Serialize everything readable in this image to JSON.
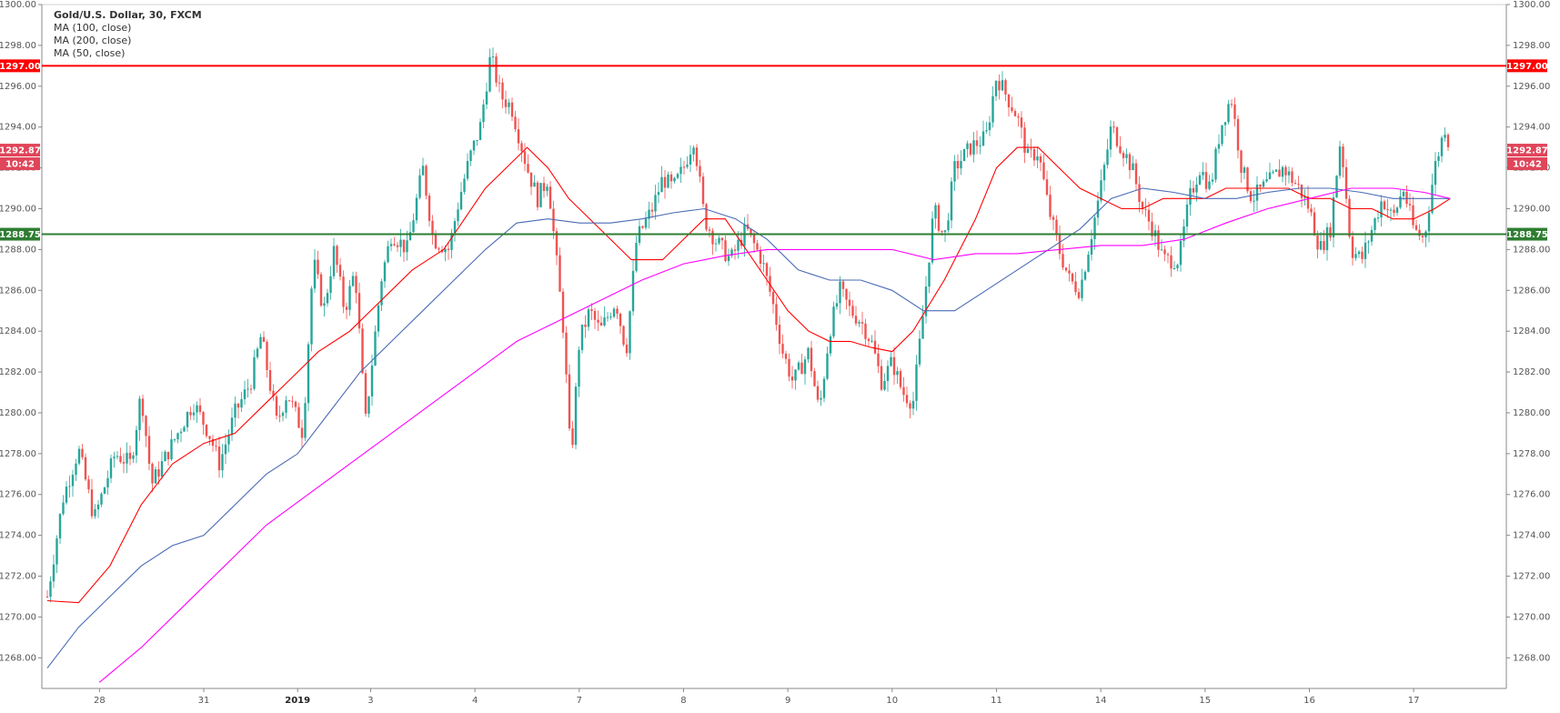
{
  "legend": {
    "title": "Gold/U.S. Dollar, 30, FXCM",
    "lines": [
      "MA (100, close)",
      "MA (200, close)",
      "MA (50, close)"
    ]
  },
  "colors": {
    "up": "#26a69a",
    "down": "#ef5350",
    "ma50": "#ff0000",
    "ma100": "#4a6bb5",
    "ma200": "#ff00ff",
    "resistance": "#ff0000",
    "support": "#2e7d32",
    "price_badge": "#e0455a"
  },
  "badges": {
    "resistance": "1297.00",
    "support": "1288.75",
    "last_price": "1292.87",
    "countdown": "10:42"
  },
  "chart_data": {
    "type": "candlestick",
    "title": "Gold/U.S. Dollar, 30, FXCM",
    "ylim": [
      1266.5,
      1300
    ],
    "yticks": [
      1268,
      1270,
      1272,
      1274,
      1276,
      1278,
      1280,
      1282,
      1284,
      1286,
      1288,
      1290,
      1292,
      1294,
      1296,
      1298,
      1300
    ],
    "ytick_labels": [
      "1268.00",
      "1270.00",
      "1272.00",
      "1274.00",
      "1276.00",
      "1278.00",
      "1280.00",
      "1282.00",
      "1284.00",
      "1286.00",
      "1288.00",
      "1290.00",
      "1292.00",
      "1294.00",
      "1296.00",
      "1298.00",
      "1300.00"
    ],
    "xlim": [
      0,
      13.5
    ],
    "xticks": [
      {
        "label": "28",
        "x": 0.5
      },
      {
        "label": "31",
        "x": 1.5
      },
      {
        "label": "2019",
        "x": 2.4,
        "bold": true
      },
      {
        "label": "3",
        "x": 3.1
      },
      {
        "label": "4",
        "x": 4.1
      },
      {
        "label": "7",
        "x": 5.1
      },
      {
        "label": "8",
        "x": 6.1
      },
      {
        "label": "9",
        "x": 7.1
      },
      {
        "label": "10",
        "x": 8.1
      },
      {
        "label": "11",
        "x": 9.1
      },
      {
        "label": "14",
        "x": 10.1
      },
      {
        "label": "15",
        "x": 11.1
      },
      {
        "label": "16",
        "x": 12.1
      },
      {
        "label": "17",
        "x": 13.1
      }
    ],
    "price_path": [
      [
        0.0,
        1271.0
      ],
      [
        0.15,
        1275.8
      ],
      [
        0.3,
        1278.2
      ],
      [
        0.45,
        1274.8
      ],
      [
        0.65,
        1278.0
      ],
      [
        0.8,
        1277.5
      ],
      [
        0.9,
        1281.0
      ],
      [
        1.0,
        1276.5
      ],
      [
        1.15,
        1278.0
      ],
      [
        1.3,
        1279.5
      ],
      [
        1.4,
        1280.5
      ],
      [
        1.55,
        1279.0
      ],
      [
        1.65,
        1277.5
      ],
      [
        1.8,
        1280.0
      ],
      [
        1.95,
        1281.5
      ],
      [
        2.05,
        1283.8
      ],
      [
        2.2,
        1279.5
      ],
      [
        2.3,
        1281.0
      ],
      [
        2.45,
        1279.0
      ],
      [
        2.55,
        1287.5
      ],
      [
        2.65,
        1285.0
      ],
      [
        2.75,
        1288.0
      ],
      [
        2.85,
        1285.0
      ],
      [
        2.95,
        1287.0
      ],
      [
        3.05,
        1279.5
      ],
      [
        3.2,
        1286.5
      ],
      [
        3.3,
        1288.8
      ],
      [
        3.45,
        1288.0
      ],
      [
        3.6,
        1292.0
      ],
      [
        3.7,
        1288.5
      ],
      [
        3.85,
        1288.0
      ],
      [
        3.95,
        1290.5
      ],
      [
        4.05,
        1292.5
      ],
      [
        4.15,
        1294.0
      ],
      [
        4.25,
        1297.5
      ],
      [
        4.35,
        1295.5
      ],
      [
        4.45,
        1295.0
      ],
      [
        4.6,
        1292.0
      ],
      [
        4.7,
        1290.5
      ],
      [
        4.8,
        1291.5
      ],
      [
        4.95,
        1284.0
      ],
      [
        5.02,
        1277.5
      ],
      [
        5.1,
        1283.5
      ],
      [
        5.2,
        1285.0
      ],
      [
        5.3,
        1284.0
      ],
      [
        5.45,
        1285.5
      ],
      [
        5.55,
        1283.0
      ],
      [
        5.65,
        1288.5
      ],
      [
        5.8,
        1290.0
      ],
      [
        5.9,
        1291.5
      ],
      [
        6.0,
        1291.0
      ],
      [
        6.1,
        1292.0
      ],
      [
        6.2,
        1293.5
      ],
      [
        6.3,
        1289.5
      ],
      [
        6.4,
        1288.5
      ],
      [
        6.55,
        1287.5
      ],
      [
        6.7,
        1289.0
      ],
      [
        6.85,
        1287.5
      ],
      [
        6.95,
        1285.5
      ],
      [
        7.05,
        1283.0
      ],
      [
        7.15,
        1281.5
      ],
      [
        7.3,
        1283.0
      ],
      [
        7.4,
        1280.0
      ],
      [
        7.5,
        1284.0
      ],
      [
        7.6,
        1286.0
      ],
      [
        7.7,
        1285.0
      ],
      [
        7.8,
        1284.5
      ],
      [
        7.9,
        1283.5
      ],
      [
        8.0,
        1281.5
      ],
      [
        8.1,
        1282.5
      ],
      [
        8.2,
        1281.0
      ],
      [
        8.3,
        1280.5
      ],
      [
        8.4,
        1285.0
      ],
      [
        8.5,
        1290.0
      ],
      [
        8.6,
        1288.5
      ],
      [
        8.7,
        1292.0
      ],
      [
        8.85,
        1293.0
      ],
      [
        9.0,
        1293.5
      ],
      [
        9.1,
        1296.5
      ],
      [
        9.2,
        1295.5
      ],
      [
        9.3,
        1294.5
      ],
      [
        9.4,
        1292.5
      ],
      [
        9.5,
        1292.8
      ],
      [
        9.6,
        1290.0
      ],
      [
        9.7,
        1288.0
      ],
      [
        9.8,
        1286.5
      ],
      [
        9.9,
        1286.0
      ],
      [
        10.0,
        1288.5
      ],
      [
        10.1,
        1291.0
      ],
      [
        10.2,
        1294.0
      ],
      [
        10.3,
        1293.0
      ],
      [
        10.4,
        1292.0
      ],
      [
        10.5,
        1290.0
      ],
      [
        10.6,
        1289.0
      ],
      [
        10.7,
        1287.5
      ],
      [
        10.85,
        1287.5
      ],
      [
        10.95,
        1290.5
      ],
      [
        11.05,
        1292.0
      ],
      [
        11.15,
        1291.0
      ],
      [
        11.25,
        1294.0
      ],
      [
        11.35,
        1295.5
      ],
      [
        11.45,
        1292.0
      ],
      [
        11.55,
        1290.5
      ],
      [
        11.65,
        1291.0
      ],
      [
        11.75,
        1291.5
      ],
      [
        11.85,
        1292.0
      ],
      [
        12.0,
        1291.0
      ],
      [
        12.1,
        1290.0
      ],
      [
        12.2,
        1288.0
      ],
      [
        12.3,
        1289.0
      ],
      [
        12.4,
        1293.5
      ],
      [
        12.5,
        1288.0
      ],
      [
        12.6,
        1287.5
      ],
      [
        12.7,
        1289.0
      ],
      [
        12.8,
        1290.5
      ],
      [
        12.9,
        1289.5
      ],
      [
        13.0,
        1291.0
      ],
      [
        13.1,
        1289.0
      ],
      [
        13.2,
        1288.5
      ],
      [
        13.3,
        1292.0
      ],
      [
        13.4,
        1294.0
      ],
      [
        13.45,
        1292.87
      ]
    ],
    "series": [
      {
        "name": "MA (50, close)",
        "color": "#ff0000",
        "points": [
          [
            0,
            1270.8
          ],
          [
            0.3,
            1270.7
          ],
          [
            0.6,
            1272.5
          ],
          [
            0.9,
            1275.5
          ],
          [
            1.2,
            1277.5
          ],
          [
            1.5,
            1278.5
          ],
          [
            1.8,
            1279.0
          ],
          [
            2.1,
            1280.5
          ],
          [
            2.4,
            1282.0
          ],
          [
            2.6,
            1283.0
          ],
          [
            2.9,
            1284.0
          ],
          [
            3.2,
            1285.5
          ],
          [
            3.5,
            1287.0
          ],
          [
            3.8,
            1288.0
          ],
          [
            4.0,
            1289.5
          ],
          [
            4.2,
            1291.0
          ],
          [
            4.4,
            1292.0
          ],
          [
            4.6,
            1293.0
          ],
          [
            4.8,
            1292.0
          ],
          [
            5.0,
            1290.5
          ],
          [
            5.3,
            1289.0
          ],
          [
            5.6,
            1287.5
          ],
          [
            5.9,
            1287.5
          ],
          [
            6.1,
            1288.5
          ],
          [
            6.3,
            1289.5
          ],
          [
            6.5,
            1289.5
          ],
          [
            6.7,
            1288.0
          ],
          [
            6.9,
            1286.5
          ],
          [
            7.1,
            1285.0
          ],
          [
            7.3,
            1284.0
          ],
          [
            7.5,
            1283.5
          ],
          [
            7.7,
            1283.5
          ],
          [
            7.9,
            1283.2
          ],
          [
            8.1,
            1283.0
          ],
          [
            8.3,
            1284.0
          ],
          [
            8.6,
            1286.5
          ],
          [
            8.9,
            1289.5
          ],
          [
            9.1,
            1292.0
          ],
          [
            9.3,
            1293.0
          ],
          [
            9.5,
            1293.0
          ],
          [
            9.7,
            1292.0
          ],
          [
            9.9,
            1291.0
          ],
          [
            10.1,
            1290.5
          ],
          [
            10.3,
            1290.0
          ],
          [
            10.5,
            1290.0
          ],
          [
            10.7,
            1290.5
          ],
          [
            10.9,
            1290.5
          ],
          [
            11.1,
            1290.5
          ],
          [
            11.3,
            1291.0
          ],
          [
            11.5,
            1291.0
          ],
          [
            11.7,
            1291.0
          ],
          [
            11.9,
            1291.0
          ],
          [
            12.1,
            1290.5
          ],
          [
            12.3,
            1290.5
          ],
          [
            12.5,
            1290.0
          ],
          [
            12.7,
            1290.0
          ],
          [
            12.9,
            1289.5
          ],
          [
            13.1,
            1289.5
          ],
          [
            13.3,
            1290.0
          ],
          [
            13.45,
            1290.5
          ]
        ]
      },
      {
        "name": "MA (100, close)",
        "color": "#4a6bb5",
        "points": [
          [
            0,
            1267.5
          ],
          [
            0.3,
            1269.5
          ],
          [
            0.6,
            1271.0
          ],
          [
            0.9,
            1272.5
          ],
          [
            1.2,
            1273.5
          ],
          [
            1.5,
            1274.0
          ],
          [
            1.8,
            1275.5
          ],
          [
            2.1,
            1277.0
          ],
          [
            2.4,
            1278.0
          ],
          [
            2.7,
            1280.0
          ],
          [
            3.0,
            1282.0
          ],
          [
            3.3,
            1283.5
          ],
          [
            3.6,
            1285.0
          ],
          [
            3.9,
            1286.5
          ],
          [
            4.2,
            1288.0
          ],
          [
            4.5,
            1289.3
          ],
          [
            4.8,
            1289.5
          ],
          [
            5.1,
            1289.3
          ],
          [
            5.4,
            1289.3
          ],
          [
            5.7,
            1289.5
          ],
          [
            6.0,
            1289.8
          ],
          [
            6.3,
            1290.0
          ],
          [
            6.6,
            1289.5
          ],
          [
            6.9,
            1288.5
          ],
          [
            7.2,
            1287.0
          ],
          [
            7.5,
            1286.5
          ],
          [
            7.8,
            1286.5
          ],
          [
            8.1,
            1286.0
          ],
          [
            8.4,
            1285.0
          ],
          [
            8.7,
            1285.0
          ],
          [
            9.0,
            1286.0
          ],
          [
            9.3,
            1287.0
          ],
          [
            9.6,
            1288.0
          ],
          [
            9.9,
            1289.0
          ],
          [
            10.2,
            1290.5
          ],
          [
            10.5,
            1291.0
          ],
          [
            10.8,
            1290.8
          ],
          [
            11.1,
            1290.5
          ],
          [
            11.4,
            1290.5
          ],
          [
            11.7,
            1290.8
          ],
          [
            12.0,
            1291.0
          ],
          [
            12.3,
            1291.0
          ],
          [
            12.6,
            1290.8
          ],
          [
            12.9,
            1290.5
          ],
          [
            13.2,
            1290.5
          ],
          [
            13.45,
            1290.5
          ]
        ]
      },
      {
        "name": "MA (200, close)",
        "color": "#ff00ff",
        "points": [
          [
            0.5,
            1266.8
          ],
          [
            0.9,
            1268.5
          ],
          [
            1.3,
            1270.5
          ],
          [
            1.7,
            1272.5
          ],
          [
            2.1,
            1274.5
          ],
          [
            2.5,
            1276.0
          ],
          [
            2.9,
            1277.5
          ],
          [
            3.3,
            1279.0
          ],
          [
            3.7,
            1280.5
          ],
          [
            4.1,
            1282.0
          ],
          [
            4.5,
            1283.5
          ],
          [
            4.9,
            1284.5
          ],
          [
            5.3,
            1285.5
          ],
          [
            5.7,
            1286.5
          ],
          [
            6.1,
            1287.3
          ],
          [
            6.5,
            1287.7
          ],
          [
            6.9,
            1288.0
          ],
          [
            7.3,
            1288.0
          ],
          [
            7.7,
            1288.0
          ],
          [
            8.1,
            1288.0
          ],
          [
            8.5,
            1287.5
          ],
          [
            8.9,
            1287.8
          ],
          [
            9.3,
            1287.8
          ],
          [
            9.7,
            1288.0
          ],
          [
            10.1,
            1288.2
          ],
          [
            10.5,
            1288.2
          ],
          [
            10.9,
            1288.5
          ],
          [
            11.3,
            1289.3
          ],
          [
            11.7,
            1290.0
          ],
          [
            12.1,
            1290.5
          ],
          [
            12.5,
            1291.0
          ],
          [
            12.9,
            1291.0
          ],
          [
            13.2,
            1290.8
          ],
          [
            13.45,
            1290.5
          ]
        ]
      }
    ],
    "hlines": [
      {
        "value": 1297.0,
        "label": "1297.00",
        "color": "#ff0000"
      },
      {
        "value": 1288.75,
        "label": "1288.75",
        "color": "#2e7d32"
      }
    ],
    "last_price": 1292.87
  }
}
